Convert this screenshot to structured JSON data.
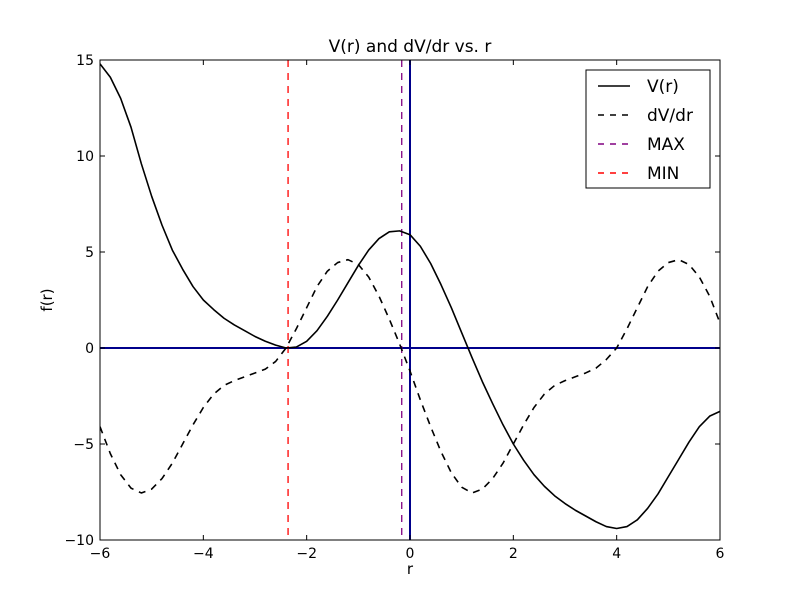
{
  "chart_data": {
    "type": "line",
    "title": "V(r) and dV/dr vs. r",
    "xlabel": "r",
    "ylabel": "f(r)",
    "xlim": [
      -6,
      6
    ],
    "ylim": [
      -10,
      15
    ],
    "xticks": [
      -6,
      -4,
      -2,
      0,
      2,
      4,
      6
    ],
    "yticks": [
      -10,
      -5,
      0,
      5,
      10,
      15
    ],
    "xtick_labels": [
      "−6",
      "−4",
      "−2",
      "0",
      "2",
      "4",
      "6"
    ],
    "ytick_labels": [
      "−10",
      "−5",
      "0",
      "5",
      "10",
      "15"
    ],
    "grid": false,
    "legend_position": "top-right",
    "series": [
      {
        "name": "V(r)",
        "style": "solid",
        "color": "#000000",
        "points": [
          [
            -6.0,
            14.8
          ],
          [
            -5.8,
            14.1
          ],
          [
            -5.6,
            13.0
          ],
          [
            -5.4,
            11.5
          ],
          [
            -5.2,
            9.6
          ],
          [
            -5.0,
            7.9
          ],
          [
            -4.8,
            6.4
          ],
          [
            -4.6,
            5.1
          ],
          [
            -4.4,
            4.1
          ],
          [
            -4.2,
            3.2
          ],
          [
            -4.0,
            2.5
          ],
          [
            -3.8,
            2.0
          ],
          [
            -3.6,
            1.55
          ],
          [
            -3.4,
            1.2
          ],
          [
            -3.2,
            0.9
          ],
          [
            -3.0,
            0.6
          ],
          [
            -2.8,
            0.35
          ],
          [
            -2.6,
            0.15
          ],
          [
            -2.4,
            0.0
          ],
          [
            -2.2,
            0.05
          ],
          [
            -2.0,
            0.35
          ],
          [
            -1.8,
            0.9
          ],
          [
            -1.6,
            1.65
          ],
          [
            -1.4,
            2.5
          ],
          [
            -1.2,
            3.4
          ],
          [
            -1.0,
            4.3
          ],
          [
            -0.8,
            5.1
          ],
          [
            -0.6,
            5.7
          ],
          [
            -0.4,
            6.05
          ],
          [
            -0.2,
            6.1
          ],
          [
            0.0,
            5.9
          ],
          [
            0.2,
            5.3
          ],
          [
            0.4,
            4.4
          ],
          [
            0.6,
            3.3
          ],
          [
            0.8,
            2.1
          ],
          [
            1.0,
            0.8
          ],
          [
            1.2,
            -0.5
          ],
          [
            1.4,
            -1.75
          ],
          [
            1.6,
            -2.9
          ],
          [
            1.8,
            -4.0
          ],
          [
            2.0,
            -5.0
          ],
          [
            2.2,
            -5.85
          ],
          [
            2.4,
            -6.6
          ],
          [
            2.6,
            -7.2
          ],
          [
            2.8,
            -7.7
          ],
          [
            3.0,
            -8.1
          ],
          [
            3.2,
            -8.45
          ],
          [
            3.4,
            -8.75
          ],
          [
            3.6,
            -9.05
          ],
          [
            3.8,
            -9.3
          ],
          [
            4.0,
            -9.4
          ],
          [
            4.2,
            -9.3
          ],
          [
            4.4,
            -8.95
          ],
          [
            4.6,
            -8.35
          ],
          [
            4.8,
            -7.6
          ],
          [
            5.0,
            -6.7
          ],
          [
            5.2,
            -5.8
          ],
          [
            5.4,
            -4.9
          ],
          [
            5.6,
            -4.1
          ],
          [
            5.8,
            -3.55
          ],
          [
            6.0,
            -3.3
          ]
        ]
      },
      {
        "name": "dV/dr",
        "style": "dashed",
        "color": "#000000",
        "points": [
          [
            -6.0,
            -4.1
          ],
          [
            -5.8,
            -5.5
          ],
          [
            -5.6,
            -6.6
          ],
          [
            -5.4,
            -7.3
          ],
          [
            -5.2,
            -7.55
          ],
          [
            -5.0,
            -7.35
          ],
          [
            -4.8,
            -6.8
          ],
          [
            -4.6,
            -6.0
          ],
          [
            -4.4,
            -5.0
          ],
          [
            -4.2,
            -4.0
          ],
          [
            -4.0,
            -3.1
          ],
          [
            -3.8,
            -2.4
          ],
          [
            -3.6,
            -1.95
          ],
          [
            -3.4,
            -1.7
          ],
          [
            -3.2,
            -1.5
          ],
          [
            -3.0,
            -1.3
          ],
          [
            -2.8,
            -1.1
          ],
          [
            -2.6,
            -0.7
          ],
          [
            -2.4,
            0.0
          ],
          [
            -2.2,
            1.0
          ],
          [
            -2.0,
            2.1
          ],
          [
            -1.8,
            3.2
          ],
          [
            -1.6,
            4.0
          ],
          [
            -1.4,
            4.45
          ],
          [
            -1.2,
            4.6
          ],
          [
            -1.0,
            4.35
          ],
          [
            -0.8,
            3.7
          ],
          [
            -0.6,
            2.7
          ],
          [
            -0.4,
            1.5
          ],
          [
            -0.2,
            0.2
          ],
          [
            0.0,
            -1.2
          ],
          [
            0.2,
            -2.7
          ],
          [
            0.4,
            -4.1
          ],
          [
            0.6,
            -5.4
          ],
          [
            0.8,
            -6.5
          ],
          [
            1.0,
            -7.25
          ],
          [
            1.2,
            -7.55
          ],
          [
            1.4,
            -7.35
          ],
          [
            1.6,
            -6.8
          ],
          [
            1.8,
            -6.0
          ],
          [
            2.0,
            -5.0
          ],
          [
            2.2,
            -4.0
          ],
          [
            2.4,
            -3.1
          ],
          [
            2.6,
            -2.4
          ],
          [
            2.8,
            -1.95
          ],
          [
            3.0,
            -1.7
          ],
          [
            3.2,
            -1.5
          ],
          [
            3.4,
            -1.3
          ],
          [
            3.6,
            -1.05
          ],
          [
            3.8,
            -0.6
          ],
          [
            4.0,
            0.0
          ],
          [
            4.2,
            1.0
          ],
          [
            4.4,
            2.1
          ],
          [
            4.6,
            3.2
          ],
          [
            4.8,
            4.0
          ],
          [
            5.0,
            4.45
          ],
          [
            5.2,
            4.6
          ],
          [
            5.4,
            4.35
          ],
          [
            5.6,
            3.7
          ],
          [
            5.8,
            2.7
          ],
          [
            6.0,
            1.3
          ]
        ]
      }
    ],
    "vlines": [
      {
        "name": "MAX",
        "x": -0.16,
        "style": "dashed",
        "color": "#800080"
      },
      {
        "name": "MIN",
        "x": -2.36,
        "style": "dashed",
        "color": "#ff0000"
      }
    ],
    "reference_lines": [
      {
        "orientation": "horizontal",
        "y": 0,
        "color": "#00008b"
      },
      {
        "orientation": "vertical",
        "x": 0,
        "color": "#00008b"
      }
    ],
    "legend": [
      {
        "label": "V(r)",
        "style": "solid",
        "color": "#000000"
      },
      {
        "label": "dV/dr",
        "style": "dashed",
        "color": "#000000"
      },
      {
        "label": "MAX",
        "style": "dashed",
        "color": "#800080"
      },
      {
        "label": "MIN",
        "style": "dashed",
        "color": "#ff0000"
      }
    ]
  }
}
